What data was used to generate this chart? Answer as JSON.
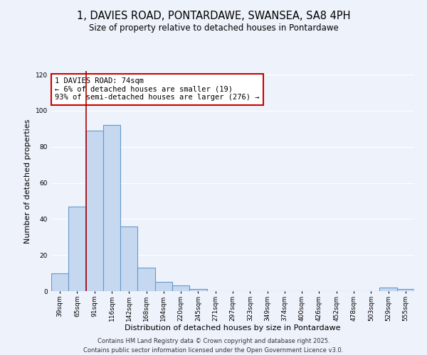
{
  "title": "1, DAVIES ROAD, PONTARDAWE, SWANSEA, SA8 4PH",
  "subtitle": "Size of property relative to detached houses in Pontardawe",
  "xlabel": "Distribution of detached houses by size in Pontardawe",
  "ylabel": "Number of detached properties",
  "bar_values": [
    10,
    47,
    89,
    92,
    36,
    13,
    5,
    3,
    1,
    0,
    0,
    0,
    0,
    0,
    0,
    0,
    0,
    0,
    0,
    2,
    1
  ],
  "bar_labels": [
    "39sqm",
    "65sqm",
    "91sqm",
    "116sqm",
    "142sqm",
    "168sqm",
    "194sqm",
    "220sqm",
    "245sqm",
    "271sqm",
    "297sqm",
    "323sqm",
    "349sqm",
    "374sqm",
    "400sqm",
    "426sqm",
    "452sqm",
    "478sqm",
    "503sqm",
    "529sqm",
    "555sqm"
  ],
  "bar_color": "#c5d8f0",
  "bar_edge_color": "#6699cc",
  "vline_color": "#aa0000",
  "vline_x": 1.5,
  "annotation_title": "1 DAVIES ROAD: 74sqm",
  "annotation_line2": "← 6% of detached houses are smaller (19)",
  "annotation_line3": "93% of semi-detached houses are larger (276) →",
  "annotation_box_facecolor": "#ffffff",
  "annotation_box_edgecolor": "#cc0000",
  "ylim": [
    0,
    122
  ],
  "yticks": [
    0,
    20,
    40,
    60,
    80,
    100,
    120
  ],
  "bg_color": "#eef2fb",
  "grid_color": "#ffffff",
  "title_fontsize": 10.5,
  "subtitle_fontsize": 8.5,
  "axis_label_fontsize": 8,
  "tick_fontsize": 6.5,
  "annotation_fontsize": 7.5,
  "footer_fontsize": 6,
  "footer_line1": "Contains HM Land Registry data © Crown copyright and database right 2025.",
  "footer_line2": "Contains public sector information licensed under the Open Government Licence v3.0."
}
